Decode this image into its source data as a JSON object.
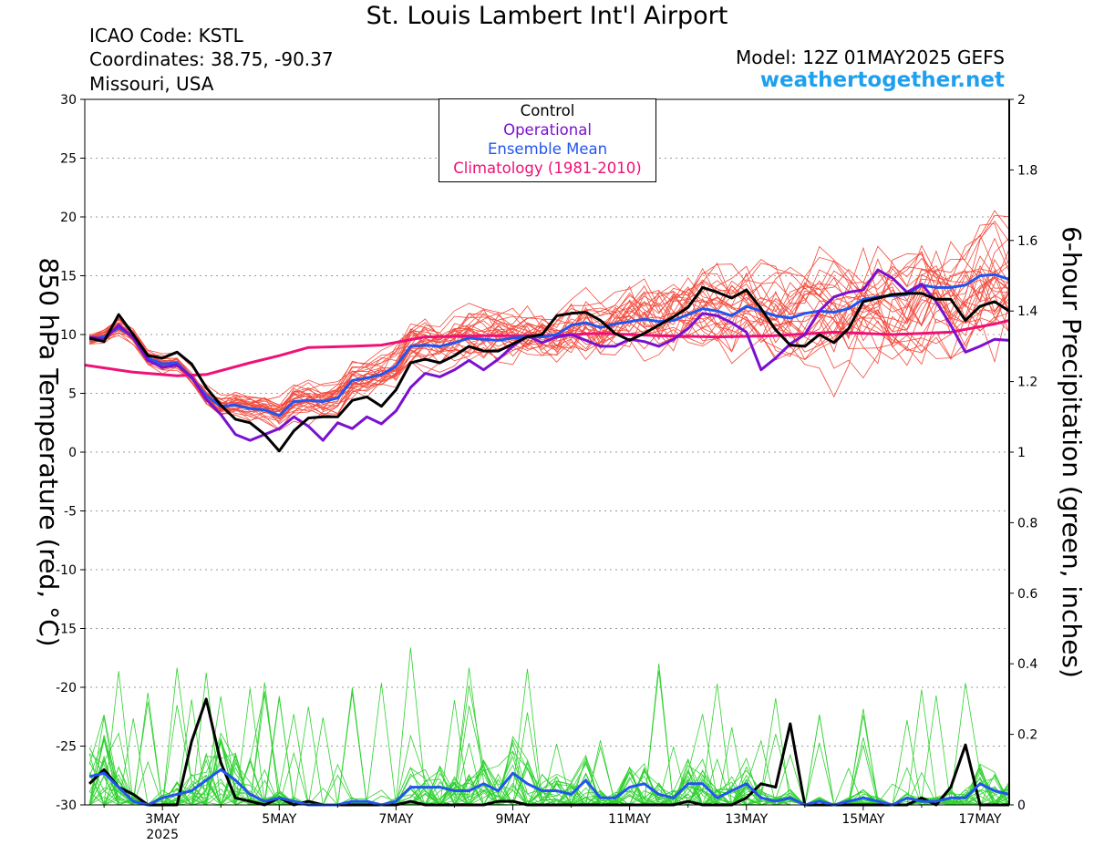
{
  "header": {
    "title": "St. Louis Lambert Int'l Airport",
    "icao": "ICAO Code: KSTL",
    "coordinates": "Coordinates: 38.75, -90.37",
    "location": "Missouri, USA",
    "model": "Model: 12Z 01MAY2025 GEFS",
    "site": "weathertogether.net"
  },
  "colors": {
    "control": "#000000",
    "operational": "#7a10d0",
    "ensemble_mean": "#2255ee",
    "climatology": "#ee1177",
    "member_temp": "#f24a3c",
    "member_precip": "#2fd12f",
    "site": "#1ea0ee"
  },
  "legend": [
    {
      "label": "Control",
      "color": "#000000"
    },
    {
      "label": "Operational",
      "color": "#7a10d0"
    },
    {
      "label": "Ensemble Mean",
      "color": "#2255ee"
    },
    {
      "label": "Climatology (1981-2010)",
      "color": "#ee1177"
    }
  ],
  "chart_data": {
    "type": "line",
    "ylabel_left": "850 hPa Temperature (red, °C)",
    "ylabel_right": "6-hour Precipitation (green, inches)",
    "ylim_left": [
      -30,
      30
    ],
    "ylim_right": [
      0,
      2
    ],
    "yticks_left": [
      30,
      25,
      20,
      15,
      10,
      5,
      0,
      -5,
      -10,
      -15,
      -20,
      -25,
      -30
    ],
    "yticks_right": [
      "2",
      "1.8",
      "1.6",
      "1.4",
      "1.2",
      "1",
      "0.8",
      "0.6",
      "0.4",
      "0.2",
      "0"
    ],
    "xlim_days": [
      1.67,
      17.5
    ],
    "xticks": [
      {
        "day": 3,
        "label": "3MAY",
        "sub": "2025"
      },
      {
        "day": 5,
        "label": "5MAY"
      },
      {
        "day": 7,
        "label": "7MAY"
      },
      {
        "day": 9,
        "label": "9MAY"
      },
      {
        "day": 11,
        "label": "11MAY"
      },
      {
        "day": 13,
        "label": "13MAY"
      },
      {
        "day": 15,
        "label": "15MAY"
      },
      {
        "day": 17,
        "label": "17MAY"
      }
    ],
    "grid": "dotted horizontal",
    "temperature": {
      "control": [
        [
          1.75,
          9.7
        ],
        [
          2,
          9.4
        ],
        [
          2.25,
          11.7
        ],
        [
          2.5,
          10
        ],
        [
          2.75,
          8.2
        ],
        [
          3,
          8
        ],
        [
          3.25,
          8.5
        ],
        [
          3.5,
          7.5
        ],
        [
          3.75,
          5.5
        ],
        [
          4,
          4
        ],
        [
          4.25,
          2.8
        ],
        [
          4.5,
          2.5
        ],
        [
          4.75,
          1.5
        ],
        [
          5,
          0.1
        ],
        [
          5.25,
          1.8
        ],
        [
          5.5,
          2.9
        ],
        [
          5.75,
          3
        ],
        [
          6,
          3
        ],
        [
          6.25,
          4.4
        ],
        [
          6.5,
          4.7
        ],
        [
          6.75,
          3.9
        ],
        [
          7,
          5.3
        ],
        [
          7.25,
          7.6
        ],
        [
          7.5,
          7.9
        ],
        [
          7.75,
          7.6
        ],
        [
          8,
          8.2
        ],
        [
          8.25,
          9
        ],
        [
          8.5,
          8.6
        ],
        [
          8.75,
          8.6
        ],
        [
          9,
          9.2
        ],
        [
          9.25,
          9.8
        ],
        [
          9.5,
          10
        ],
        [
          9.75,
          11.6
        ],
        [
          10,
          11.8
        ],
        [
          10.25,
          11.9
        ],
        [
          10.5,
          11.2
        ],
        [
          10.75,
          10.1
        ],
        [
          11,
          9.5
        ],
        [
          11.25,
          10.1
        ],
        [
          11.5,
          10.8
        ],
        [
          11.75,
          11.5
        ],
        [
          12,
          12.3
        ],
        [
          12.25,
          14
        ],
        [
          12.5,
          13.6
        ],
        [
          12.75,
          13.1
        ],
        [
          13,
          13.8
        ],
        [
          13.25,
          12.2
        ],
        [
          13.5,
          10.4
        ],
        [
          13.75,
          9.1
        ],
        [
          14,
          9
        ],
        [
          14.25,
          10
        ],
        [
          14.5,
          9.3
        ],
        [
          14.75,
          10.5
        ],
        [
          15,
          12.8
        ],
        [
          15.25,
          13.1
        ],
        [
          15.5,
          13.4
        ],
        [
          15.75,
          13.5
        ],
        [
          16,
          13.5
        ],
        [
          16.25,
          13
        ],
        [
          16.5,
          13
        ],
        [
          16.75,
          11.2
        ],
        [
          17,
          12.4
        ],
        [
          17.25,
          12.8
        ],
        [
          17.5,
          12
        ]
      ],
      "operational": [
        [
          1.75,
          9.8
        ],
        [
          2,
          9.6
        ],
        [
          2.25,
          10.8
        ],
        [
          2.5,
          9.7
        ],
        [
          2.75,
          7.8
        ],
        [
          3,
          7.2
        ],
        [
          3.25,
          7.4
        ],
        [
          3.5,
          6.4
        ],
        [
          3.75,
          4.5
        ],
        [
          4,
          3.2
        ],
        [
          4.25,
          1.5
        ],
        [
          4.5,
          1
        ],
        [
          4.75,
          1.5
        ],
        [
          5,
          2
        ],
        [
          5.25,
          3
        ],
        [
          5.5,
          2.2
        ],
        [
          5.75,
          1
        ],
        [
          6,
          2.5
        ],
        [
          6.25,
          2
        ],
        [
          6.5,
          3
        ],
        [
          6.75,
          2.4
        ],
        [
          7,
          3.5
        ],
        [
          7.25,
          5.5
        ],
        [
          7.5,
          6.7
        ],
        [
          7.75,
          6.4
        ],
        [
          8,
          7
        ],
        [
          8.25,
          7.8
        ],
        [
          8.5,
          7
        ],
        [
          8.75,
          7.9
        ],
        [
          9,
          9
        ],
        [
          9.25,
          9.9
        ],
        [
          9.5,
          9.3
        ],
        [
          9.75,
          9.8
        ],
        [
          10,
          10
        ],
        [
          10.25,
          9.5
        ],
        [
          10.5,
          9
        ],
        [
          10.75,
          9
        ],
        [
          11,
          9.6
        ],
        [
          11.25,
          9.4
        ],
        [
          11.5,
          9
        ],
        [
          11.75,
          9.6
        ],
        [
          12,
          10.5
        ],
        [
          12.25,
          11.8
        ],
        [
          12.5,
          11.6
        ],
        [
          12.75,
          11
        ],
        [
          13,
          10.2
        ],
        [
          13.25,
          7
        ],
        [
          13.5,
          8
        ],
        [
          13.75,
          9.2
        ],
        [
          14,
          10
        ],
        [
          14.25,
          12
        ],
        [
          14.5,
          13.2
        ],
        [
          14.75,
          13.6
        ],
        [
          15,
          13.8
        ],
        [
          15.25,
          15.5
        ],
        [
          15.5,
          14.8
        ],
        [
          15.75,
          13.6
        ],
        [
          16,
          14.3
        ],
        [
          16.25,
          12.8
        ],
        [
          16.5,
          10.8
        ],
        [
          16.75,
          8.5
        ],
        [
          17,
          9
        ],
        [
          17.25,
          9.6
        ],
        [
          17.5,
          9.5
        ]
      ],
      "ensemble_mean": [
        [
          1.75,
          9.6
        ],
        [
          2,
          9.8
        ],
        [
          2.25,
          10.6
        ],
        [
          2.5,
          9.8
        ],
        [
          2.75,
          8
        ],
        [
          3,
          7.5
        ],
        [
          3.25,
          7.6
        ],
        [
          3.5,
          6.3
        ],
        [
          3.75,
          4.8
        ],
        [
          4,
          3.9
        ],
        [
          4.25,
          4
        ],
        [
          4.5,
          3.7
        ],
        [
          4.75,
          3.6
        ],
        [
          5,
          3.1
        ],
        [
          5.25,
          4.3
        ],
        [
          5.5,
          4.4
        ],
        [
          5.75,
          4.3
        ],
        [
          6,
          4.6
        ],
        [
          6.25,
          6.1
        ],
        [
          6.5,
          6.3
        ],
        [
          6.75,
          6.6
        ],
        [
          7,
          7.3
        ],
        [
          7.25,
          9
        ],
        [
          7.5,
          9.1
        ],
        [
          7.75,
          9
        ],
        [
          8,
          9.3
        ],
        [
          8.25,
          9.7
        ],
        [
          8.5,
          9.6
        ],
        [
          8.75,
          9.5
        ],
        [
          9,
          9.7
        ],
        [
          9.25,
          9.8
        ],
        [
          9.5,
          9.8
        ],
        [
          9.75,
          10
        ],
        [
          10,
          10.8
        ],
        [
          10.25,
          11
        ],
        [
          10.5,
          10.6
        ],
        [
          10.75,
          10.9
        ],
        [
          11,
          11.1
        ],
        [
          11.25,
          11.3
        ],
        [
          11.5,
          11.1
        ],
        [
          11.75,
          11.2
        ],
        [
          12,
          11.7
        ],
        [
          12.25,
          12.2
        ],
        [
          12.5,
          12
        ],
        [
          12.75,
          11.6
        ],
        [
          13,
          12.4
        ],
        [
          13.25,
          12
        ],
        [
          13.5,
          11.6
        ],
        [
          13.75,
          11.4
        ],
        [
          14,
          11.8
        ],
        [
          14.25,
          12
        ],
        [
          14.5,
          11.9
        ],
        [
          14.75,
          12.2
        ],
        [
          15,
          13
        ],
        [
          15.25,
          13.2
        ],
        [
          15.5,
          13.3
        ],
        [
          15.75,
          13.4
        ],
        [
          16,
          14.2
        ],
        [
          16.25,
          14
        ],
        [
          16.5,
          14
        ],
        [
          16.75,
          14.2
        ],
        [
          17,
          15
        ],
        [
          17.25,
          15.1
        ],
        [
          17.5,
          14.7
        ]
      ],
      "climatology": [
        [
          1.67,
          7.4
        ],
        [
          2.5,
          6.8
        ],
        [
          3.25,
          6.5
        ],
        [
          3.75,
          6.6
        ],
        [
          4.5,
          7.6
        ],
        [
          5,
          8.2
        ],
        [
          5.5,
          8.9
        ],
        [
          6.25,
          9
        ],
        [
          6.75,
          9.1
        ],
        [
          7.5,
          9.8
        ],
        [
          8.5,
          9.9
        ],
        [
          9.5,
          9.9
        ],
        [
          10.5,
          10.1
        ],
        [
          11.5,
          9.9
        ],
        [
          12.5,
          9.8
        ],
        [
          13.5,
          9.9
        ],
        [
          14.5,
          10.2
        ],
        [
          15.5,
          10
        ],
        [
          16.5,
          10.2
        ],
        [
          17.25,
          10.9
        ],
        [
          17.5,
          11.2
        ]
      ]
    },
    "precipitation": {
      "control": [
        [
          1.75,
          0.06
        ],
        [
          2,
          0.1
        ],
        [
          2.25,
          0.05
        ],
        [
          2.5,
          0.03
        ],
        [
          2.75,
          0
        ],
        [
          3,
          0
        ],
        [
          3.25,
          0
        ],
        [
          3.5,
          0.18
        ],
        [
          3.75,
          0.3
        ],
        [
          4,
          0.12
        ],
        [
          4.25,
          0.02
        ],
        [
          4.5,
          0.01
        ],
        [
          4.75,
          0
        ],
        [
          5,
          0.02
        ],
        [
          5.25,
          0
        ],
        [
          5.5,
          0.01
        ],
        [
          5.75,
          0
        ],
        [
          6,
          0
        ],
        [
          6.5,
          0
        ],
        [
          7,
          0
        ],
        [
          7.25,
          0.01
        ],
        [
          7.5,
          0
        ],
        [
          8,
          0
        ],
        [
          8.5,
          0
        ],
        [
          8.75,
          0.01
        ],
        [
          9,
          0.01
        ],
        [
          9.25,
          0
        ],
        [
          10,
          0
        ],
        [
          11,
          0
        ],
        [
          11.75,
          0
        ],
        [
          12,
          0.01
        ],
        [
          12.25,
          0
        ],
        [
          12.75,
          0
        ],
        [
          13,
          0.02
        ],
        [
          13.25,
          0.06
        ],
        [
          13.5,
          0.05
        ],
        [
          13.75,
          0.23
        ],
        [
          14,
          0
        ],
        [
          14.5,
          0
        ],
        [
          15,
          0
        ],
        [
          15.5,
          0
        ],
        [
          15.75,
          0
        ],
        [
          16,
          0.02
        ],
        [
          16.25,
          0
        ],
        [
          16.5,
          0.05
        ],
        [
          16.75,
          0.17
        ],
        [
          17,
          0
        ],
        [
          17.5,
          0
        ]
      ],
      "ensemble_mean": [
        [
          1.75,
          0.08
        ],
        [
          2,
          0.09
        ],
        [
          2.25,
          0.05
        ],
        [
          2.5,
          0.01
        ],
        [
          2.75,
          0
        ],
        [
          3,
          0.02
        ],
        [
          3.25,
          0.03
        ],
        [
          3.5,
          0.04
        ],
        [
          3.75,
          0.07
        ],
        [
          4,
          0.1
        ],
        [
          4.25,
          0.07
        ],
        [
          4.5,
          0.03
        ],
        [
          4.75,
          0.01
        ],
        [
          5,
          0.02
        ],
        [
          5.25,
          0.01
        ],
        [
          5.5,
          0
        ],
        [
          5.75,
          0
        ],
        [
          6,
          0
        ],
        [
          6.25,
          0.01
        ],
        [
          6.5,
          0.01
        ],
        [
          6.75,
          0
        ],
        [
          7,
          0.01
        ],
        [
          7.25,
          0.05
        ],
        [
          7.5,
          0.05
        ],
        [
          7.75,
          0.05
        ],
        [
          8,
          0.04
        ],
        [
          8.25,
          0.04
        ],
        [
          8.5,
          0.06
        ],
        [
          8.75,
          0.04
        ],
        [
          9,
          0.09
        ],
        [
          9.25,
          0.06
        ],
        [
          9.5,
          0.04
        ],
        [
          9.75,
          0.04
        ],
        [
          10,
          0.03
        ],
        [
          10.25,
          0.07
        ],
        [
          10.5,
          0.02
        ],
        [
          10.75,
          0.02
        ],
        [
          11,
          0.05
        ],
        [
          11.25,
          0.06
        ],
        [
          11.5,
          0.03
        ],
        [
          11.75,
          0.02
        ],
        [
          12,
          0.06
        ],
        [
          12.25,
          0.06
        ],
        [
          12.5,
          0.02
        ],
        [
          12.75,
          0.04
        ],
        [
          13,
          0.06
        ],
        [
          13.25,
          0.02
        ],
        [
          13.5,
          0.01
        ],
        [
          13.75,
          0.02
        ],
        [
          14,
          0
        ],
        [
          14.25,
          0.01
        ],
        [
          14.5,
          0
        ],
        [
          14.75,
          0.01
        ],
        [
          15,
          0.02
        ],
        [
          15.25,
          0.01
        ],
        [
          15.5,
          0
        ],
        [
          15.75,
          0.02
        ],
        [
          16,
          0.01
        ],
        [
          16.25,
          0.01
        ],
        [
          16.5,
          0.02
        ],
        [
          16.75,
          0.02
        ],
        [
          17,
          0.06
        ],
        [
          17.25,
          0.04
        ],
        [
          17.5,
          0.03
        ]
      ]
    }
  }
}
